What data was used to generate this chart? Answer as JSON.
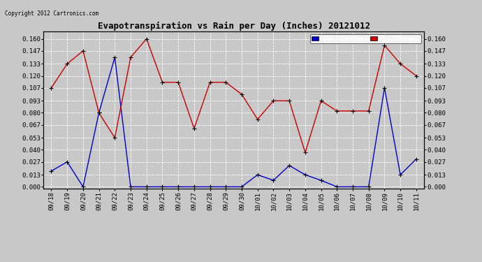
{
  "title": "Evapotranspiration vs Rain per Day (Inches) 20121012",
  "copyright": "Copyright 2012 Cartronics.com",
  "categories": [
    "09/18",
    "09/19",
    "09/20",
    "09/21",
    "09/22",
    "09/23",
    "09/24",
    "09/25",
    "09/26",
    "09/27",
    "09/28",
    "09/29",
    "09/30",
    "10/01",
    "10/02",
    "10/03",
    "10/04",
    "10/05",
    "10/06",
    "10/07",
    "10/08",
    "10/09",
    "10/10",
    "10/11"
  ],
  "rain": [
    0.017,
    0.027,
    0.0,
    0.08,
    0.14,
    0.0,
    0.0,
    0.0,
    0.0,
    0.0,
    0.0,
    0.0,
    0.0,
    0.013,
    0.007,
    0.023,
    0.013,
    0.007,
    0.0,
    0.0,
    0.0,
    0.107,
    0.013,
    0.03
  ],
  "et": [
    0.107,
    0.133,
    0.147,
    0.08,
    0.053,
    0.14,
    0.16,
    0.113,
    0.113,
    0.063,
    0.113,
    0.113,
    0.1,
    0.073,
    0.093,
    0.093,
    0.037,
    0.093,
    0.082,
    0.082,
    0.082,
    0.153,
    0.133,
    0.12
  ],
  "rain_color": "#0000cc",
  "et_color": "#cc0000",
  "marker_color": "#000000",
  "background_color": "#c8c8c8",
  "grid_color": "#ffffff",
  "ylim_min": -0.002,
  "ylim_max": 0.168,
  "yticks": [
    0.0,
    0.013,
    0.027,
    0.04,
    0.053,
    0.067,
    0.08,
    0.093,
    0.107,
    0.12,
    0.133,
    0.147,
    0.16
  ],
  "legend_rain_bg": "#0000cc",
  "legend_et_bg": "#cc0000",
  "title_fontsize": 9,
  "tick_fontsize": 6.5
}
